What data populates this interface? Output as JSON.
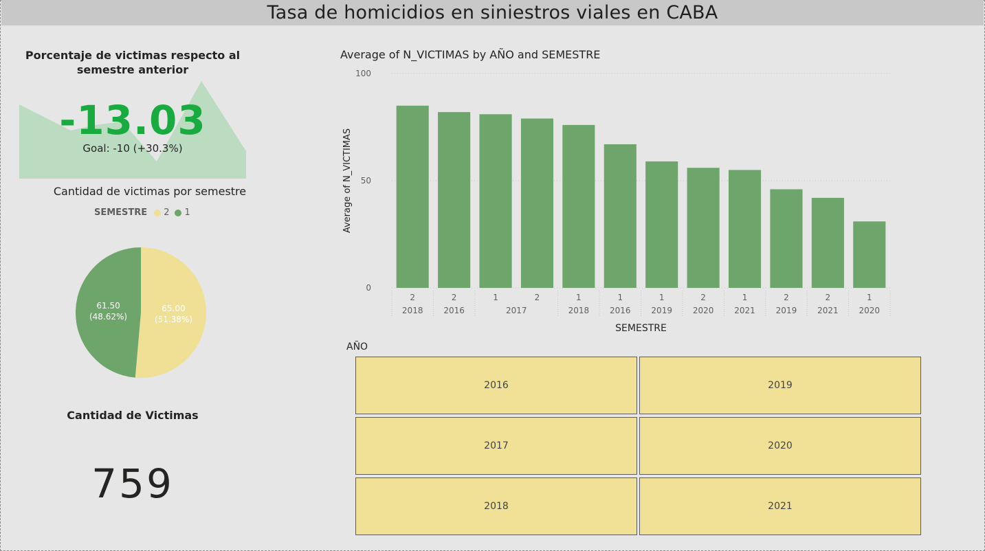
{
  "title": "Tasa de homicidios en siniestros viales en CABA",
  "kpi": {
    "title": "Porcentaje de victimas respecto al semestre anterior",
    "value": "-13.03",
    "goal": "Goal: -10 (+30.3%)",
    "status_icon": "check-icon",
    "value_color": "#1aab40"
  },
  "pie": {
    "title": "Cantidad de victimas por semestre",
    "legend_title": "SEMESTRE",
    "legend": [
      {
        "label": "2",
        "color": "#efe096"
      },
      {
        "label": "1",
        "color": "#6ea56a"
      }
    ],
    "slices": [
      {
        "name": "2",
        "value": 65.0,
        "value_label": "65.00",
        "pct_label": "(51.38%)",
        "color": "#efe096"
      },
      {
        "name": "1",
        "value": 61.5,
        "value_label": "61.50",
        "pct_label": "(48.62%)",
        "color": "#6ea56a"
      }
    ]
  },
  "total": {
    "title": "Cantidad de Victimas",
    "value": "759"
  },
  "chart_data": {
    "type": "bar",
    "title": "Average of N_VICTIMAS by AÑO and SEMESTRE",
    "xlabel": "SEMESTRE",
    "ylabel": "Average of N_VICTIMAS",
    "ylim": [
      0,
      100
    ],
    "yticks": [
      "0",
      "50",
      "100"
    ],
    "grid": true,
    "bar_color": "#6ea56a",
    "categories": [
      {
        "semestre": "2",
        "anio": "2018"
      },
      {
        "semestre": "2",
        "anio": "2016"
      },
      {
        "semestre": "1",
        "anio": "2017"
      },
      {
        "semestre": "2",
        "anio": "2017"
      },
      {
        "semestre": "1",
        "anio": "2018"
      },
      {
        "semestre": "1",
        "anio": "2016"
      },
      {
        "semestre": "1",
        "anio": "2019"
      },
      {
        "semestre": "2",
        "anio": "2020"
      },
      {
        "semestre": "1",
        "anio": "2021"
      },
      {
        "semestre": "2",
        "anio": "2019"
      },
      {
        "semestre": "2",
        "anio": "2021"
      },
      {
        "semestre": "1",
        "anio": "2020"
      }
    ],
    "values": [
      85,
      82,
      81,
      79,
      76,
      67,
      59,
      56,
      55,
      46,
      42,
      31
    ]
  },
  "slicer": {
    "title": "AÑO",
    "items": [
      "2016",
      "2019",
      "2017",
      "2020",
      "2018",
      "2021"
    ],
    "item_color": "#f0e196"
  }
}
